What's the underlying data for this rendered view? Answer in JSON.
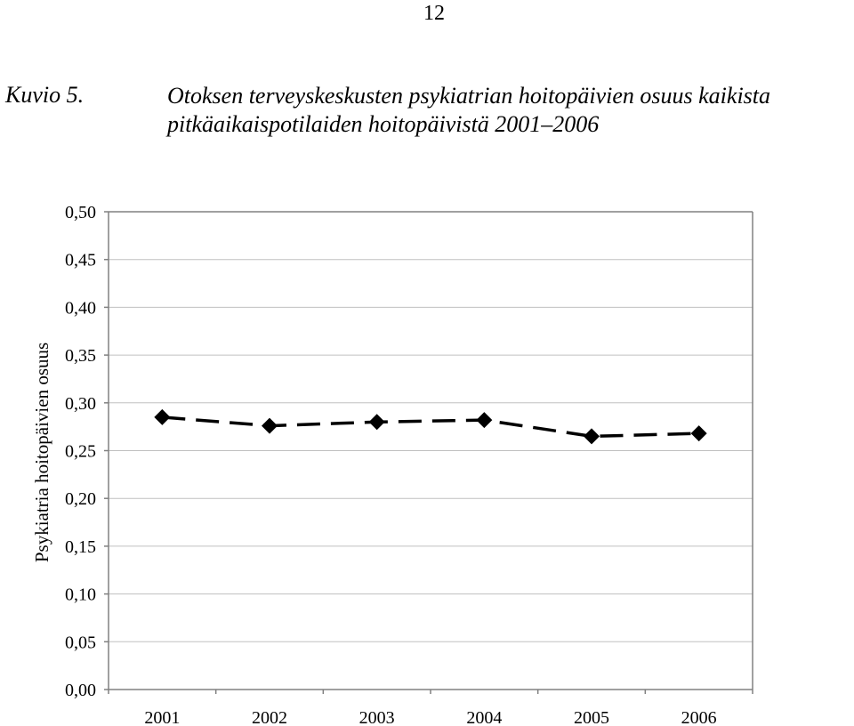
{
  "page": {
    "number": "12"
  },
  "figure": {
    "label": "Kuvio 5.",
    "title_lines": [
      "Otoksen terveyskeskusten psykiatrian hoitopäivien osuus kaikista",
      "pitkäaikaispotilaiden hoitopäivistä 2001–2006"
    ]
  },
  "chart_data": {
    "type": "line",
    "categories": [
      "2001",
      "2002",
      "2003",
      "2004",
      "2005",
      "2006"
    ],
    "series": [
      {
        "values": [
          0.285,
          0.276,
          0.28,
          0.282,
          0.265,
          0.268
        ],
        "color": "#000000",
        "line_style": "dashed",
        "marker": "diamond"
      }
    ],
    "ylabel": "Psykiatria hoitopäivien osuus",
    "xlabel": "",
    "ylim": [
      0.0,
      0.5
    ],
    "yticks": [
      0.0,
      0.05,
      0.1,
      0.15,
      0.2,
      0.25,
      0.3,
      0.35,
      0.4,
      0.45,
      0.5
    ],
    "ytick_labels": [
      "0,00",
      "0,05",
      "0,10",
      "0,15",
      "0,20",
      "0,25",
      "0,30",
      "0,35",
      "0,40",
      "0,45",
      "0,50"
    ],
    "grid": true,
    "legend": "none",
    "colors": {
      "gridline": "#c0c0c0",
      "axis": "#808080",
      "frame": "#808080"
    }
  }
}
